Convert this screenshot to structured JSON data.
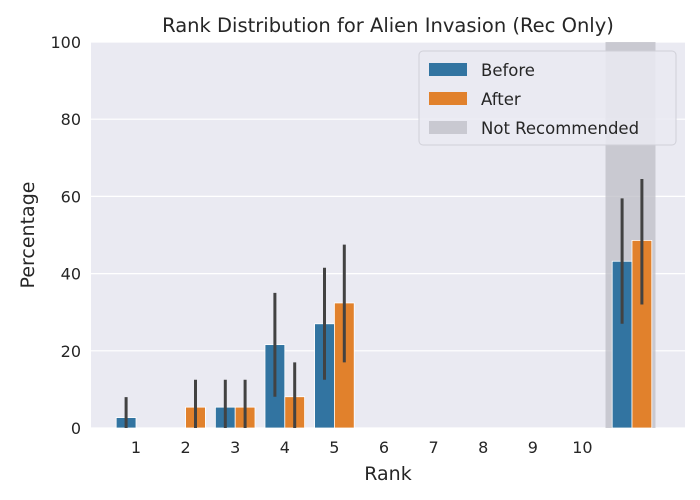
{
  "chart_data": {
    "type": "bar",
    "title": "Rank Distribution for Alien Invasion (Rec Only)",
    "xlabel": "Rank",
    "ylabel": "Percentage",
    "ylim": [
      0,
      100
    ],
    "yticks": [
      0,
      20,
      40,
      60,
      80,
      100
    ],
    "categories": [
      "1",
      "2",
      "3",
      "4",
      "5",
      "6",
      "7",
      "8",
      "9",
      "10",
      ""
    ],
    "series": [
      {
        "name": "Before",
        "color": "#3274a1",
        "values": [
          2.7,
          0,
          5.4,
          21.6,
          27.0,
          0,
          0,
          0,
          0,
          0,
          43.2
        ],
        "err_low": [
          0,
          0,
          0,
          8.1,
          12.5,
          0,
          0,
          0,
          0,
          0,
          27.0
        ],
        "err_high": [
          8.0,
          0,
          12.5,
          35.0,
          41.5,
          0,
          0,
          0,
          0,
          0,
          59.5
        ]
      },
      {
        "name": "After",
        "color": "#e1812c",
        "values": [
          0,
          5.4,
          5.4,
          8.1,
          32.4,
          0,
          0,
          0,
          0,
          0,
          48.6
        ],
        "err_low": [
          0,
          0,
          0,
          0,
          17.0,
          0,
          0,
          0,
          0,
          0,
          32.0
        ],
        "err_high": [
          0,
          12.5,
          12.5,
          17.0,
          47.5,
          0,
          0,
          0,
          0,
          0,
          64.5
        ]
      }
    ],
    "highlight": {
      "name": "Not Recommended",
      "category_index": 10,
      "color": "#bdbdc6"
    },
    "legend_position": "top-right",
    "grid": true
  }
}
